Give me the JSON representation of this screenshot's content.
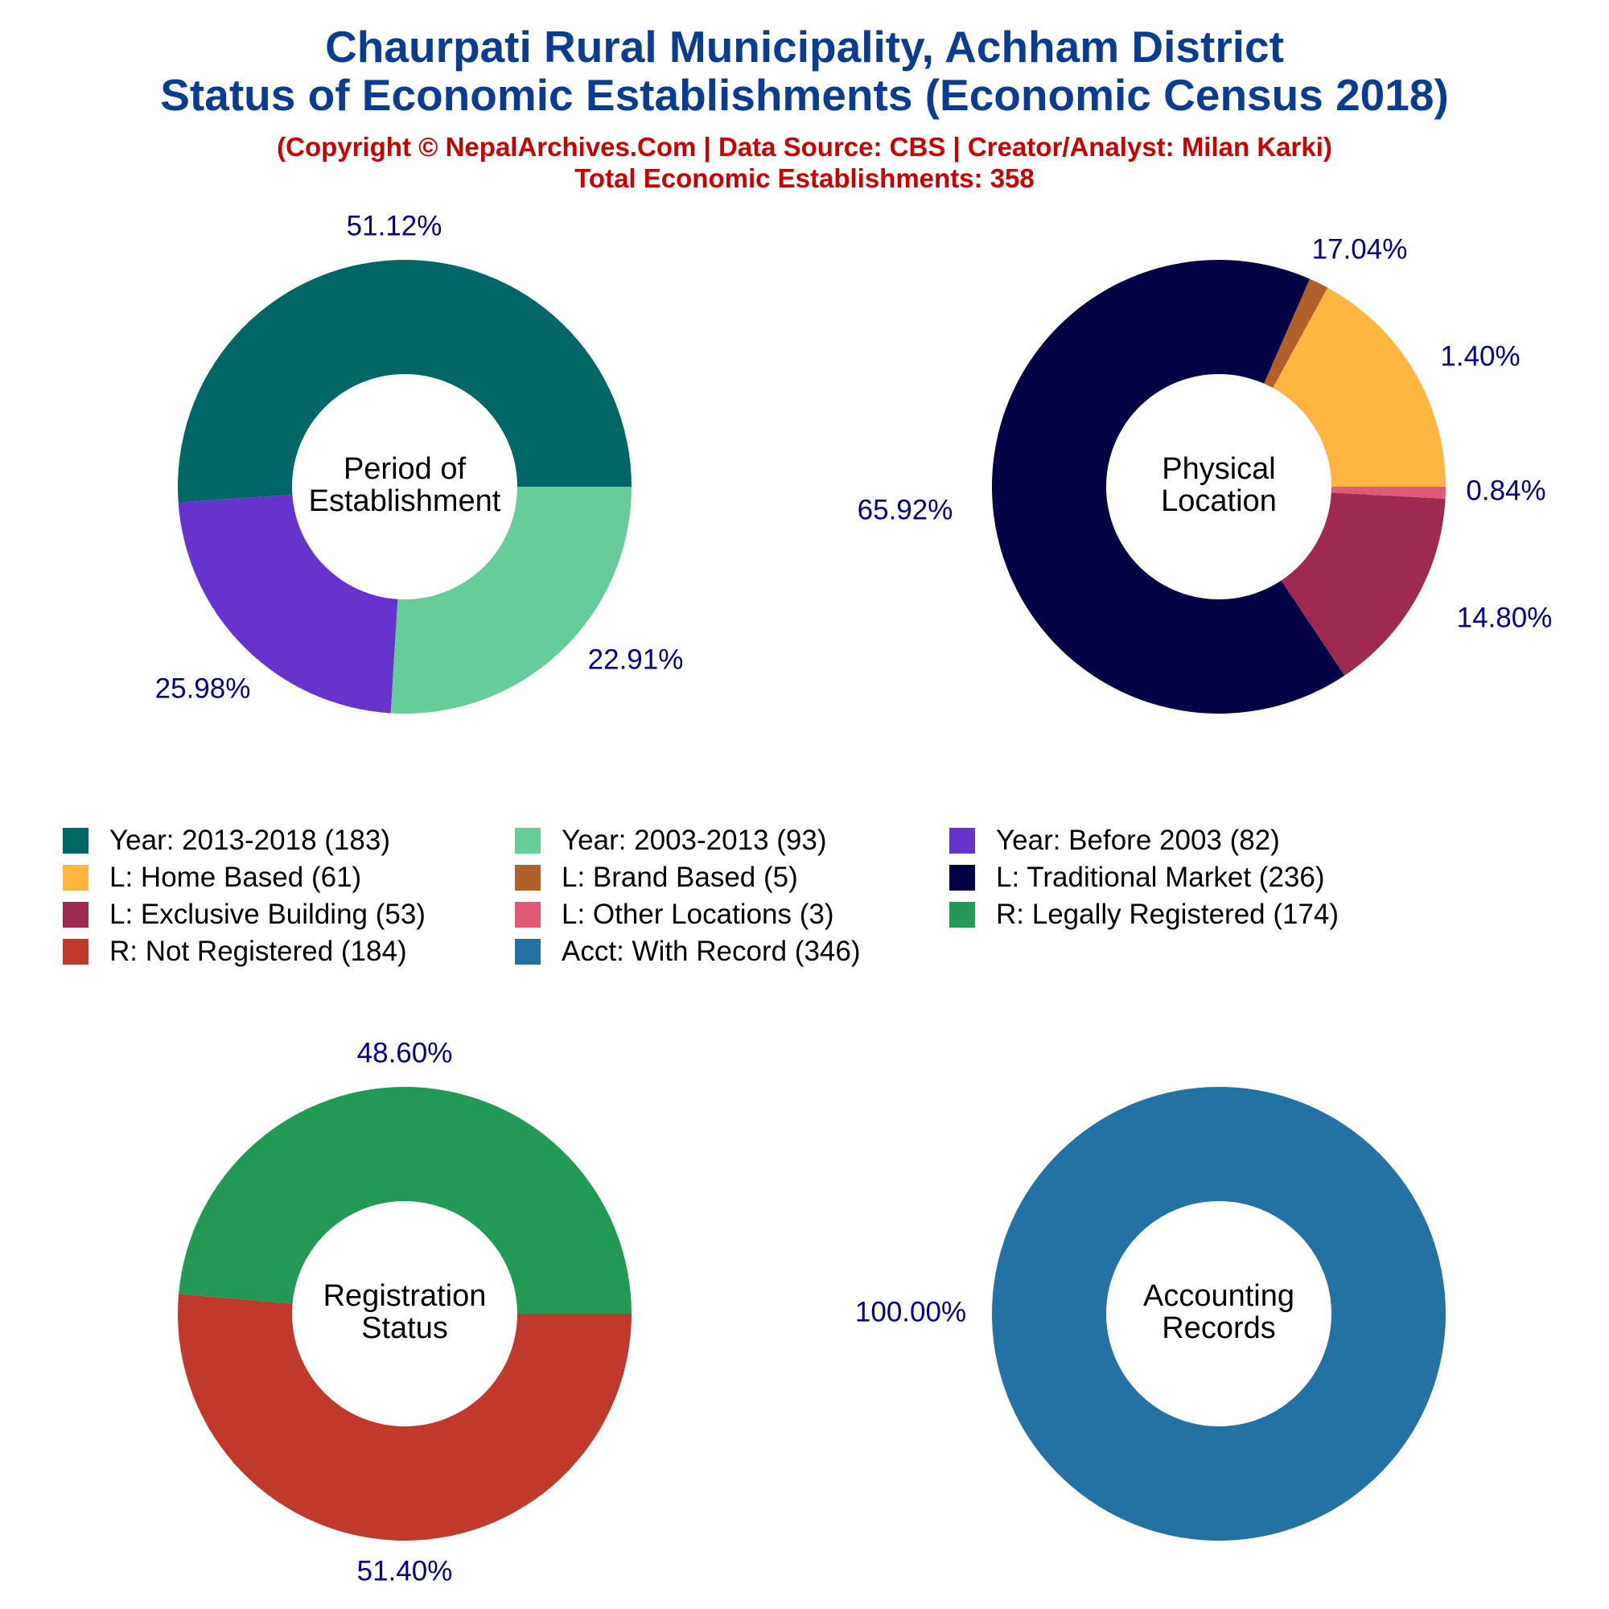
{
  "title_line1": "Chaurpati Rural Municipality, Achham District",
  "title_line2": "Status of Economic Establishments (Economic Census 2018)",
  "copyright": "(Copyright © NepalArchives.Com | Data Source: CBS | Creator/Analyst: Milan Karki)",
  "total_text": "Total Economic Establishments: 358",
  "legend": [
    {
      "label": "Year: 2013-2018 (183)",
      "color": "#006666"
    },
    {
      "label": "Year: 2003-2013 (93)",
      "color": "#66cc99"
    },
    {
      "label": "Year: Before 2003 (82)",
      "color": "#6633cc"
    },
    {
      "label": "L: Home Based (61)",
      "color": "#ffb640"
    },
    {
      "label": "L: Brand Based (5)",
      "color": "#b0602b"
    },
    {
      "label": "L: Traditional Market (236)",
      "color": "#030345"
    },
    {
      "label": "L: Exclusive Building (53)",
      "color": "#9e2a52"
    },
    {
      "label": "L: Other Locations (3)",
      "color": "#e05a78"
    },
    {
      "label": "R: Legally Registered (174)",
      "color": "#229954"
    },
    {
      "label": "R: Not Registered (184)",
      "color": "#c0392b"
    },
    {
      "label": "Acct: With Record (346)",
      "color": "#2471a3"
    }
  ],
  "chart_data": [
    {
      "type": "pie",
      "center_label": [
        "Period of",
        "Establishment"
      ],
      "slices": [
        {
          "name": "Year: 2013-2018",
          "value": 183,
          "label": "51.12%",
          "color": "#006666"
        },
        {
          "name": "Year: Before 2003",
          "value": 82,
          "label": "22.91%",
          "color": "#6633cc"
        },
        {
          "name": "Year: 2003-2013",
          "value": 93,
          "label": "25.98%",
          "color": "#66cc99"
        }
      ]
    },
    {
      "type": "pie",
      "center_label": [
        "Physical",
        "Location"
      ],
      "slices": [
        {
          "name": "L: Home Based",
          "value": 61,
          "label": "17.04%",
          "color": "#ffb640"
        },
        {
          "name": "L: Brand Based",
          "value": 5,
          "label": "1.40%",
          "color": "#b0602b"
        },
        {
          "name": "L: Traditional Market",
          "value": 236,
          "label": "65.92%",
          "color": "#030345"
        },
        {
          "name": "L: Exclusive Building",
          "value": 53,
          "label": "14.80%",
          "color": "#9e2a52"
        },
        {
          "name": "L: Other Locations",
          "value": 3,
          "label": "0.84%",
          "color": "#e05a78"
        }
      ]
    },
    {
      "type": "pie",
      "center_label": [
        "Registration",
        "Status"
      ],
      "slices": [
        {
          "name": "R: Legally Registered",
          "value": 174,
          "label": "48.60%",
          "color": "#229954"
        },
        {
          "name": "R: Not Registered",
          "value": 184,
          "label": "51.40%",
          "color": "#c0392b"
        }
      ]
    },
    {
      "type": "pie",
      "center_label": [
        "Accounting",
        "Records"
      ],
      "slices": [
        {
          "name": "Acct: With Record",
          "value": 346,
          "label": "100.00%",
          "color": "#2471a3"
        }
      ]
    }
  ]
}
